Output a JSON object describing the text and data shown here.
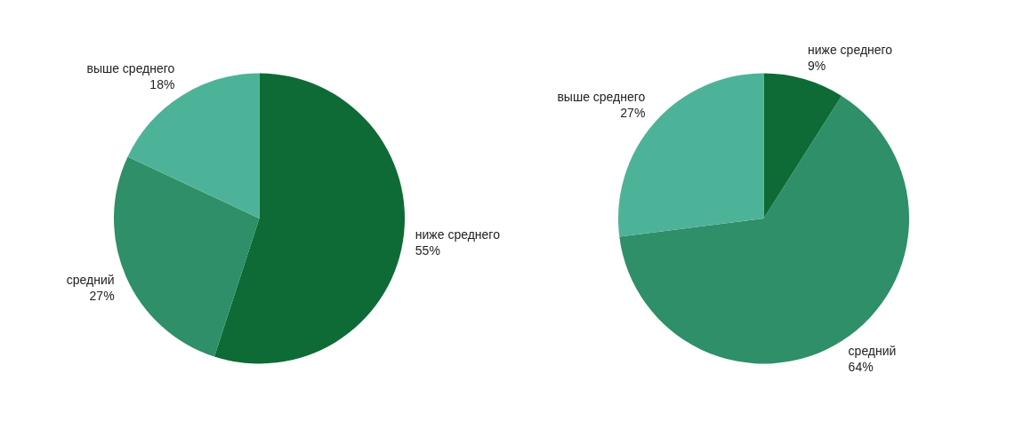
{
  "chart_data": [
    {
      "type": "pie",
      "categories": [
        "ниже среднего",
        "средний",
        "выше среднего"
      ],
      "values": [
        55,
        27,
        18
      ],
      "value_labels": [
        "55%",
        "27%",
        "18%"
      ],
      "colors": [
        "#0e6b35",
        "#2e8f68",
        "#4db398"
      ],
      "legend": false
    },
    {
      "type": "pie",
      "categories": [
        "ниже среднего",
        "средний",
        "выше среднего"
      ],
      "values": [
        9,
        64,
        27
      ],
      "value_labels": [
        "9%",
        "64%",
        "27%"
      ],
      "colors": [
        "#0e6b35",
        "#2e8f68",
        "#4db398"
      ],
      "legend": false
    }
  ]
}
